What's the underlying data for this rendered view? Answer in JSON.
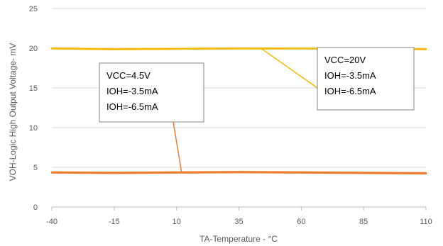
{
  "chart_data": {
    "type": "line",
    "title": "",
    "xlabel": "TA-Temperature - °C",
    "ylabel": "VOH-Logic High Output Voltage- mV",
    "xlim": [
      -40,
      110
    ],
    "ylim": [
      0,
      25
    ],
    "xticks": [
      -40,
      -15,
      10,
      35,
      60,
      85,
      110
    ],
    "yticks": [
      0,
      5,
      10,
      15,
      20,
      25
    ],
    "grid": "horizontal",
    "legend": "none",
    "colors": {
      "upper_group": "#F5B800",
      "lower_group": "#ED7D31",
      "grid": "#D9D9D9",
      "axis": "#BFBFBF"
    },
    "series": [
      {
        "x": [
          -40,
          -15,
          10,
          35,
          60,
          85,
          110
        ],
        "values": [
          20.0,
          19.9,
          19.95,
          20.0,
          19.98,
          19.95,
          19.9
        ],
        "color": "#F5B800"
      },
      {
        "x": [
          -40,
          -15,
          10,
          35,
          60,
          85,
          110
        ],
        "values": [
          19.95,
          19.85,
          19.9,
          19.95,
          19.95,
          19.9,
          19.85
        ],
        "color": "#F5B800"
      },
      {
        "x": [
          -40,
          -15,
          10,
          35,
          60,
          85,
          110
        ],
        "values": [
          4.4,
          4.35,
          4.4,
          4.45,
          4.4,
          4.35,
          4.3
        ],
        "color": "#ED7D31"
      },
      {
        "x": [
          -40,
          -15,
          10,
          35,
          60,
          85,
          110
        ],
        "values": [
          4.3,
          4.25,
          4.3,
          4.35,
          4.3,
          4.25,
          4.2
        ],
        "color": "#ED7D31"
      }
    ],
    "annotations": [
      {
        "lines": [
          "VCC=4.5V",
          "IOH=-3.5mA",
          "IOH=-6.5mA"
        ],
        "pointer_color": "#ED7D31",
        "pointer_target": {
          "x": 12,
          "y": 4.4
        }
      },
      {
        "lines": [
          "VCC=20V",
          "IOH=-3.5mA",
          "IOH=-6.5mA"
        ],
        "pointer_color": "#F5B800",
        "pointer_target": {
          "x": 44,
          "y": 19.95
        }
      }
    ]
  }
}
